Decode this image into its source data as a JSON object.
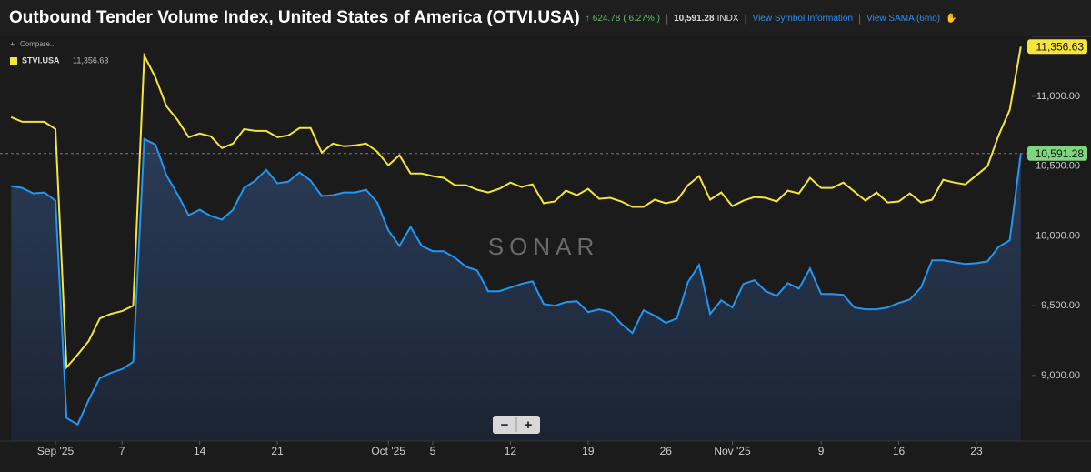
{
  "header": {
    "title": "Outbound Tender Volume Index, United States of America (OTVI.USA)",
    "change": "624.78",
    "change_pct": "( 6.27% )",
    "last": "10,591.28",
    "unit": "INDX",
    "links": [
      "View Symbol Information",
      "View SAMA (6mo)"
    ]
  },
  "chart_data": {
    "type": "line",
    "watermark": "SONAR",
    "compare": "Compare...",
    "zoom": [
      "−",
      "+"
    ],
    "x": [
      "2025-08-28",
      "2025-08-29",
      "2025-08-30",
      "2025-08-31",
      "2025-09-01",
      "2025-09-02",
      "2025-09-03",
      "2025-09-04",
      "2025-09-05",
      "2025-09-06",
      "2025-09-07",
      "2025-09-08",
      "2025-09-09",
      "2025-09-10",
      "2025-09-11",
      "2025-09-12",
      "2025-09-13",
      "2025-09-14",
      "2025-09-15",
      "2025-09-16",
      "2025-09-17",
      "2025-09-18",
      "2025-09-19",
      "2025-09-20",
      "2025-09-21",
      "2025-09-22",
      "2025-09-23",
      "2025-09-24",
      "2025-09-25",
      "2025-09-26",
      "2025-09-27",
      "2025-09-28",
      "2025-09-29",
      "2025-09-30",
      "2025-10-01",
      "2025-10-02",
      "2025-10-03",
      "2025-10-04",
      "2025-10-05",
      "2025-10-06",
      "2025-10-07",
      "2025-10-08",
      "2025-10-09",
      "2025-10-10",
      "2025-10-11",
      "2025-10-12",
      "2025-10-13",
      "2025-10-14",
      "2025-10-15",
      "2025-10-16",
      "2025-10-17",
      "2025-10-18",
      "2025-10-19",
      "2025-10-20",
      "2025-10-21",
      "2025-10-22",
      "2025-10-23",
      "2025-10-24",
      "2025-10-25",
      "2025-10-26",
      "2025-10-27",
      "2025-10-28",
      "2025-10-29",
      "2025-10-30",
      "2025-10-31",
      "2025-11-01",
      "2025-11-02",
      "2025-11-03",
      "2025-11-04",
      "2025-11-05",
      "2025-11-06",
      "2025-11-07",
      "2025-11-08",
      "2025-11-09",
      "2025-11-10",
      "2025-11-11",
      "2025-11-12",
      "2025-11-13",
      "2025-11-14",
      "2025-11-15",
      "2025-11-16",
      "2025-11-17",
      "2025-11-18",
      "2025-11-19",
      "2025-11-20",
      "2025-11-21",
      "2025-11-22",
      "2025-11-23",
      "2025-11-24",
      "2025-11-25",
      "2025-11-26",
      "2025-11-27"
    ],
    "xlim": [
      "2025-08-27",
      "2025-11-28"
    ],
    "xticks": [
      {
        "value": "2025-09-01",
        "label": "Sep '25"
      },
      {
        "value": "2025-09-07",
        "label": "7"
      },
      {
        "value": "2025-09-14",
        "label": "14"
      },
      {
        "value": "2025-09-21",
        "label": "21"
      },
      {
        "value": "2025-10-01",
        "label": "Oct '25"
      },
      {
        "value": "2025-10-05",
        "label": "5"
      },
      {
        "value": "2025-10-12",
        "label": "12"
      },
      {
        "value": "2025-10-19",
        "label": "19"
      },
      {
        "value": "2025-10-26",
        "label": "26"
      },
      {
        "value": "2025-11-01",
        "label": "Nov '25"
      },
      {
        "value": "2025-11-09",
        "label": "9"
      },
      {
        "value": "2025-11-16",
        "label": "16"
      },
      {
        "value": "2025-11-23",
        "label": "23"
      }
    ],
    "ylim": [
      8530,
      11430
    ],
    "yticks": [
      {
        "value": 9000,
        "label": "9,000.00"
      },
      {
        "value": 9500,
        "label": "9,500.00"
      },
      {
        "value": 10000,
        "label": "10,000.00"
      },
      {
        "value": 10500,
        "label": "10,500.00"
      },
      {
        "value": 11000,
        "label": "11,000.00"
      }
    ],
    "series": [
      {
        "name": "OTVI.USA",
        "color": "#2196f3",
        "fill": true,
        "in_legend": false,
        "label_color": "#7ed67e",
        "last_label": "10,591.28",
        "values": [
          10357,
          10344,
          10305,
          10312,
          10253,
          8695,
          8649,
          8825,
          8981,
          9019,
          9045,
          9097,
          10695,
          10656,
          10435,
          10299,
          10149,
          10188,
          10143,
          10117,
          10188,
          10344,
          10396,
          10474,
          10377,
          10390,
          10455,
          10396,
          10286,
          10292,
          10312,
          10312,
          10331,
          10240,
          10039,
          9929,
          10065,
          9929,
          9890,
          9890,
          9844,
          9779,
          9753,
          9604,
          9604,
          9630,
          9656,
          9675,
          9513,
          9500,
          9526,
          9532,
          9455,
          9474,
          9455,
          9370,
          9305,
          9468,
          9429,
          9377,
          9409,
          9669,
          9792,
          9442,
          9539,
          9487,
          9656,
          9682,
          9604,
          9571,
          9662,
          9623,
          9766,
          9584,
          9584,
          9578,
          9487,
          9474,
          9474,
          9487,
          9519,
          9545,
          9630,
          9825,
          9825,
          9812,
          9799,
          9805,
          9818,
          9922,
          9968,
          10591.28
        ]
      },
      {
        "name": "STVI.USA",
        "color": "#f5e53a",
        "fill": false,
        "in_legend": true,
        "label_color": "#f5e53a",
        "last_label": "11,356.63",
        "values": [
          10851,
          10818,
          10818,
          10818,
          10766,
          9058,
          9149,
          9247,
          9409,
          9442,
          9461,
          9500,
          11292,
          11137,
          10929,
          10831,
          10708,
          10734,
          10714,
          10630,
          10662,
          10766,
          10753,
          10753,
          10708,
          10721,
          10773,
          10773,
          10597,
          10662,
          10643,
          10649,
          10662,
          10604,
          10507,
          10578,
          10448,
          10448,
          10429,
          10416,
          10364,
          10364,
          10331,
          10312,
          10338,
          10383,
          10351,
          10370,
          10234,
          10247,
          10325,
          10292,
          10338,
          10266,
          10273,
          10247,
          10208,
          10208,
          10260,
          10234,
          10253,
          10364,
          10429,
          10260,
          10312,
          10214,
          10253,
          10279,
          10273,
          10247,
          10325,
          10305,
          10416,
          10344,
          10344,
          10383,
          10318,
          10253,
          10312,
          10240,
          10247,
          10305,
          10240,
          10260,
          10403,
          10383,
          10370,
          10435,
          10500,
          10721,
          10903,
          11356.63
        ]
      }
    ]
  }
}
